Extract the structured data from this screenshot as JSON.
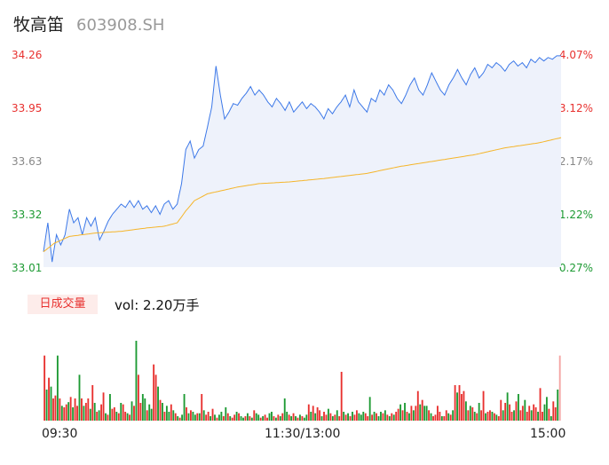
{
  "header": {
    "name": "牧高笛",
    "code": "603908.SH"
  },
  "volume_panel": {
    "badge": "日成交量",
    "label": "vol: 2.20万手"
  },
  "chart_data": {
    "type": "line",
    "y_left_ticks": [
      "34.26",
      "33.95",
      "33.63",
      "33.32",
      "33.01"
    ],
    "y_right_ticks": [
      "4.07%",
      "3.12%",
      "2.17%",
      "1.22%",
      "0.27%"
    ],
    "x_ticks": [
      "09:30",
      "11:30/13:00",
      "15:00"
    ],
    "ylim": [
      33.01,
      34.26
    ],
    "colors": {
      "price": "#3c78e8",
      "avg": "#f5b52a",
      "up": "#e8312f",
      "down": "#1d9a33",
      "fill": "#eef2fb"
    },
    "price_anchors": [
      [
        0,
        33.1
      ],
      [
        2,
        33.27
      ],
      [
        4,
        33.04
      ],
      [
        6,
        33.2
      ],
      [
        8,
        33.14
      ],
      [
        10,
        33.2
      ],
      [
        12,
        33.35
      ],
      [
        14,
        33.27
      ],
      [
        16,
        33.3
      ],
      [
        18,
        33.2
      ],
      [
        20,
        33.3
      ],
      [
        22,
        33.25
      ],
      [
        24,
        33.3
      ],
      [
        26,
        33.17
      ],
      [
        28,
        33.22
      ],
      [
        30,
        33.28
      ],
      [
        32,
        33.32
      ],
      [
        34,
        33.35
      ],
      [
        36,
        33.38
      ],
      [
        38,
        33.36
      ],
      [
        40,
        33.4
      ],
      [
        42,
        33.36
      ],
      [
        44,
        33.4
      ],
      [
        46,
        33.35
      ],
      [
        48,
        33.37
      ],
      [
        50,
        33.33
      ],
      [
        52,
        33.37
      ],
      [
        54,
        33.32
      ],
      [
        56,
        33.38
      ],
      [
        58,
        33.4
      ],
      [
        60,
        33.35
      ],
      [
        62,
        33.38
      ],
      [
        64,
        33.5
      ],
      [
        66,
        33.7
      ],
      [
        68,
        33.75
      ],
      [
        70,
        33.65
      ],
      [
        72,
        33.7
      ],
      [
        74,
        33.72
      ],
      [
        76,
        33.83
      ],
      [
        78,
        33.95
      ],
      [
        80,
        34.19
      ],
      [
        82,
        34.02
      ],
      [
        84,
        33.88
      ],
      [
        86,
        33.92
      ],
      [
        88,
        33.97
      ],
      [
        90,
        33.96
      ],
      [
        92,
        34.0
      ],
      [
        94,
        34.03
      ],
      [
        96,
        34.07
      ],
      [
        98,
        34.02
      ],
      [
        100,
        34.05
      ],
      [
        102,
        34.02
      ],
      [
        104,
        33.98
      ],
      [
        106,
        33.95
      ],
      [
        108,
        34.0
      ],
      [
        110,
        33.97
      ],
      [
        112,
        33.93
      ],
      [
        114,
        33.98
      ],
      [
        116,
        33.92
      ],
      [
        118,
        33.95
      ],
      [
        120,
        33.98
      ],
      [
        122,
        33.94
      ],
      [
        124,
        33.97
      ],
      [
        126,
        33.95
      ],
      [
        128,
        33.92
      ],
      [
        130,
        33.88
      ],
      [
        132,
        33.94
      ],
      [
        134,
        33.91
      ],
      [
        136,
        33.95
      ],
      [
        138,
        33.98
      ],
      [
        140,
        34.02
      ],
      [
        142,
        33.95
      ],
      [
        144,
        34.05
      ],
      [
        146,
        33.98
      ],
      [
        148,
        33.95
      ],
      [
        150,
        33.92
      ],
      [
        152,
        34.0
      ],
      [
        154,
        33.98
      ],
      [
        156,
        34.05
      ],
      [
        158,
        34.02
      ],
      [
        160,
        34.08
      ],
      [
        162,
        34.05
      ],
      [
        164,
        34.0
      ],
      [
        166,
        33.97
      ],
      [
        168,
        34.02
      ],
      [
        170,
        34.08
      ],
      [
        172,
        34.12
      ],
      [
        174,
        34.05
      ],
      [
        176,
        34.02
      ],
      [
        178,
        34.08
      ],
      [
        180,
        34.15
      ],
      [
        182,
        34.1
      ],
      [
        184,
        34.05
      ],
      [
        186,
        34.02
      ],
      [
        188,
        34.08
      ],
      [
        190,
        34.12
      ],
      [
        192,
        34.17
      ],
      [
        194,
        34.12
      ],
      [
        196,
        34.08
      ],
      [
        198,
        34.14
      ],
      [
        200,
        34.18
      ],
      [
        202,
        34.12
      ],
      [
        204,
        34.15
      ],
      [
        206,
        34.2
      ],
      [
        208,
        34.18
      ],
      [
        210,
        34.21
      ],
      [
        212,
        34.19
      ],
      [
        214,
        34.16
      ],
      [
        216,
        34.2
      ],
      [
        218,
        34.22
      ],
      [
        220,
        34.19
      ],
      [
        222,
        34.21
      ],
      [
        224,
        34.18
      ],
      [
        226,
        34.23
      ],
      [
        228,
        34.21
      ],
      [
        230,
        34.24
      ],
      [
        232,
        34.22
      ],
      [
        234,
        34.24
      ],
      [
        236,
        34.23
      ],
      [
        238,
        34.25
      ],
      [
        240,
        34.25
      ]
    ],
    "avg_anchors": [
      [
        0,
        33.1
      ],
      [
        5,
        33.15
      ],
      [
        12,
        33.19
      ],
      [
        24,
        33.21
      ],
      [
        36,
        33.22
      ],
      [
        48,
        33.24
      ],
      [
        56,
        33.25
      ],
      [
        62,
        33.27
      ],
      [
        66,
        33.34
      ],
      [
        70,
        33.4
      ],
      [
        76,
        33.44
      ],
      [
        90,
        33.48
      ],
      [
        100,
        33.5
      ],
      [
        114,
        33.51
      ],
      [
        130,
        33.53
      ],
      [
        150,
        33.56
      ],
      [
        165,
        33.6
      ],
      [
        180,
        33.63
      ],
      [
        200,
        33.67
      ],
      [
        214,
        33.71
      ],
      [
        230,
        33.74
      ],
      [
        240,
        33.77
      ]
    ],
    "volume": [
      0.88,
      0.42,
      0.58,
      0.46,
      0.3,
      0.34,
      0.88,
      0.3,
      0.2,
      0.18,
      0.22,
      0.25,
      0.32,
      0.18,
      0.3,
      0.2,
      0.62,
      0.3,
      0.2,
      0.24,
      0.3,
      0.16,
      0.48,
      0.24,
      0.12,
      0.14,
      0.22,
      0.38,
      0.1,
      0.08,
      0.36,
      0.16,
      0.18,
      0.12,
      0.1,
      0.24,
      0.22,
      0.12,
      0.1,
      0.08,
      0.26,
      0.2,
      1.08,
      0.62,
      0.24,
      0.36,
      0.3,
      0.14,
      0.22,
      0.16,
      0.76,
      0.62,
      0.46,
      0.28,
      0.24,
      0.12,
      0.2,
      0.12,
      0.22,
      0.14,
      0.1,
      0.06,
      0.04,
      0.08,
      0.36,
      0.18,
      0.1,
      0.14,
      0.12,
      0.08,
      0.1,
      0.1,
      0.36,
      0.14,
      0.08,
      0.12,
      0.06,
      0.16,
      0.08,
      0.04,
      0.08,
      0.12,
      0.06,
      0.18,
      0.1,
      0.06,
      0.04,
      0.08,
      0.12,
      0.1,
      0.06,
      0.04,
      0.06,
      0.1,
      0.06,
      0.04,
      0.14,
      0.1,
      0.08,
      0.04,
      0.06,
      0.08,
      0.04,
      0.1,
      0.12,
      0.06,
      0.04,
      0.08,
      0.06,
      0.1,
      0.3,
      0.12,
      0.08,
      0.06,
      0.1,
      0.06,
      0.04,
      0.08,
      0.06,
      0.04,
      0.08,
      0.22,
      0.12,
      0.2,
      0.1,
      0.18,
      0.14,
      0.06,
      0.12,
      0.08,
      0.16,
      0.1,
      0.06,
      0.08,
      0.14,
      0.06,
      0.66,
      0.12,
      0.08,
      0.1,
      0.06,
      0.12,
      0.08,
      0.14,
      0.1,
      0.08,
      0.12,
      0.1,
      0.06,
      0.32,
      0.08,
      0.12,
      0.1,
      0.06,
      0.12,
      0.1,
      0.14,
      0.08,
      0.06,
      0.1,
      0.08,
      0.12,
      0.16,
      0.22,
      0.14,
      0.24,
      0.12,
      0.1,
      0.2,
      0.14,
      0.2,
      0.4,
      0.22,
      0.28,
      0.2,
      0.2,
      0.14,
      0.1,
      0.06,
      0.08,
      0.2,
      0.12,
      0.06,
      0.06,
      0.14,
      0.1,
      0.08,
      0.14,
      0.48,
      0.38,
      0.48,
      0.36,
      0.4,
      0.26,
      0.14,
      0.2,
      0.18,
      0.12,
      0.1,
      0.24,
      0.14,
      0.4,
      0.1,
      0.12,
      0.14,
      0.12,
      0.1,
      0.08,
      0.06,
      0.28,
      0.14,
      0.24,
      0.38,
      0.22,
      0.12,
      0.14,
      0.26,
      0.36,
      0.14,
      0.2,
      0.28,
      0.12,
      0.2,
      0.14,
      0.22,
      0.18,
      0.12,
      0.44,
      0.12,
      0.22,
      0.32,
      0.16,
      0.06,
      0.26,
      0.18,
      0.42,
      0.88
    ],
    "volume_colors": "rgrgrrgrgrrgrgrrgrgrrgrgrgrrgrgrrgrgrrgrgrgrrggrggrrgrgrggrgrgrggrgrggrgrgrrgrgrggrgrgrrgrggrgrgrggrgrrggrgrgrggrgrgrgrggrgrgrrgrrgrgrgrrgrgrgrrgggrrgrgrggrgrgrgrrgrgrgrgrrgrggrgrrrrgrrgrgrgrrrgrgrgrgrrgrrgrgrrgrgrrgrgrrgrrgrrgrrggrgrrgrrgr"
  }
}
